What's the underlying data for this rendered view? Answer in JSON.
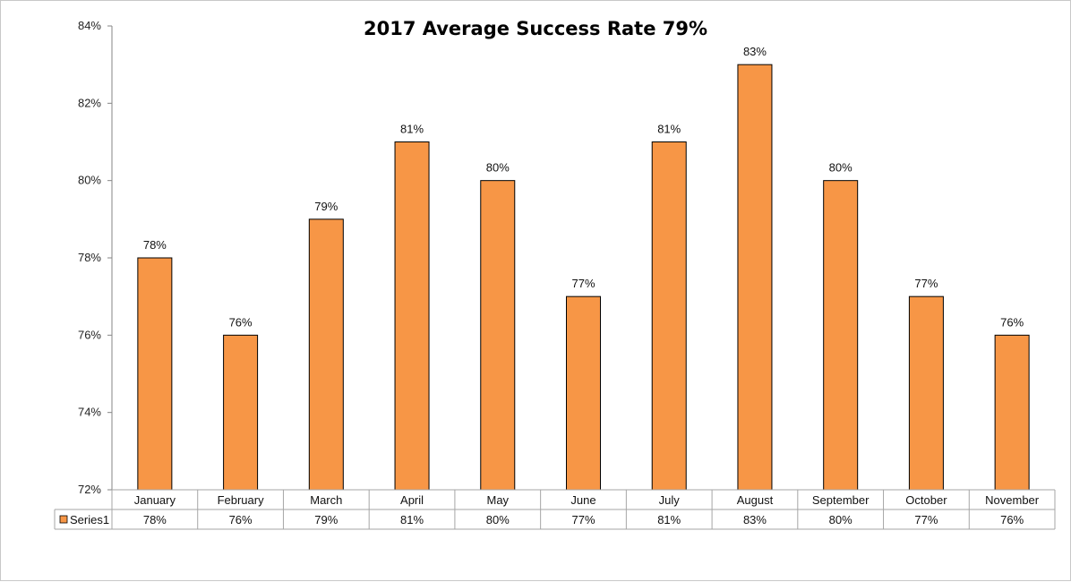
{
  "chart_data": {
    "type": "bar",
    "title": "2017 Average Success Rate 79%",
    "categories": [
      "January",
      "February",
      "March",
      "April",
      "May",
      "June",
      "July",
      "August",
      "September",
      "October",
      "November"
    ],
    "series": [
      {
        "name": "Series1",
        "values": [
          78,
          76,
          79,
          81,
          80,
          77,
          81,
          83,
          80,
          77,
          76
        ],
        "color": "#F79646"
      }
    ],
    "value_labels": [
      "78%",
      "76%",
      "79%",
      "81%",
      "80%",
      "77%",
      "81%",
      "83%",
      "80%",
      "77%",
      "76%"
    ],
    "ylim": [
      72,
      84
    ],
    "yticks": [
      "72%",
      "74%",
      "76%",
      "78%",
      "80%",
      "82%",
      "84%"
    ],
    "grid": false,
    "data_table": true,
    "legend": "data-table-left"
  }
}
